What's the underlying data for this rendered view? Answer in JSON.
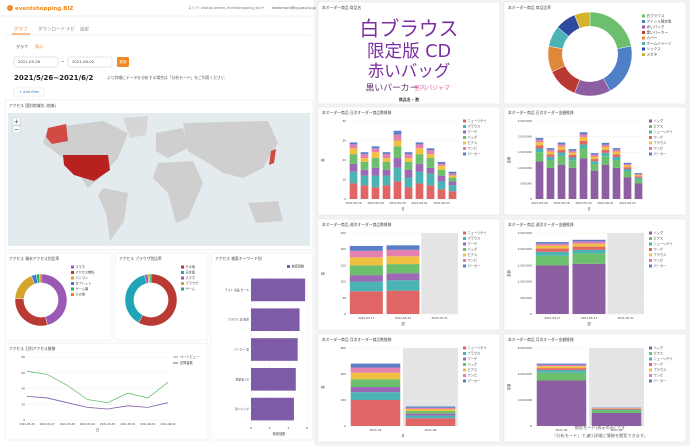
{
  "header": {
    "logo": "eventshopping.BIZ",
    "store": "ストア: eastay-stems_eventshopping_biz ▾",
    "user": "kashimura@cg-pay.co.jp"
  },
  "tabs": [
    "グラフ",
    "ダウンロード",
    "ナビ",
    "設定"
  ],
  "subtabs": [
    "グラフ",
    "表示"
  ],
  "date_from": "2021-05-26",
  "date_sep": "~",
  "date_to": "2021-06-02",
  "update_button": "更新",
  "period": "2021/5/26~2021/6/2",
  "notice": "より詳細にデータを分析する場合は「分析モード」をご利用ください",
  "add_filter": "+ Add filter",
  "footer": {
    "line1": "閲覧モード(表示のみ) です",
    "line2": "「分析モード」でより詳細に情報を閲覧できます。"
  },
  "chart_data": [
    {
      "type": "map",
      "title": "アクセス 国別地域別 (地域)"
    },
    {
      "type": "donut",
      "title": "アクセス 端末アクセス別比率",
      "categories": [
        "スマホ",
        "アクセス無料",
        "パソコン",
        "タブレット",
        "ゲーム機",
        "その他"
      ],
      "values": [
        46,
        30,
        18,
        3,
        2,
        1
      ],
      "colors": [
        "#9b59b6",
        "#b83a32",
        "#d4a52a",
        "#3a7bd5",
        "#27ae60",
        "#e67e22"
      ]
    },
    {
      "type": "donut",
      "title": "アクセス ブラウザ別比率",
      "categories": [
        "その他",
        "日本語",
        "スマホ",
        "ブラウザ",
        "ゲーム"
      ],
      "values": [
        58,
        38,
        2,
        1,
        1
      ],
      "colors": [
        "#b83a32",
        "#1fa5b5",
        "#9b59b6",
        "#d4a52a",
        "#27ae60"
      ]
    },
    {
      "type": "hbar",
      "title": "アクセス 検索キーワード別",
      "categories": [
        "テスト 商品 セール",
        "ブラウス 白 限定",
        "パーカー 黒",
        "限定版 CD",
        "赤いバッグ"
      ],
      "series": [
        {
          "name": "検索回数",
          "color": "#7d5ba6",
          "values": [
            5.8,
            5.2,
            5.0,
            4.8,
            4.6
          ]
        }
      ],
      "xlim": [
        0,
        6
      ],
      "xticks": [
        0,
        2,
        4,
        6
      ],
      "xlabel": "検索回数"
    },
    {
      "type": "line",
      "title": "アクセス 日別アクセス推移",
      "categories": [
        "2021-05-26",
        "2021-05-27",
        "2021-05-28",
        "2021-05-29",
        "2021-05-30",
        "2021-05-31",
        "2021-06-01",
        "2021-06-02"
      ],
      "series": [
        {
          "name": "ページビュー",
          "color": "#6cc070",
          "values": [
            62,
            58,
            44,
            26,
            22,
            34,
            28,
            48
          ]
        },
        {
          "name": "訪問者数",
          "color": "#7d5ba6",
          "values": [
            30,
            28,
            22,
            16,
            14,
            18,
            16,
            22
          ]
        }
      ],
      "ylim": [
        0,
        80
      ],
      "yticks": [
        0,
        20,
        40,
        60,
        80
      ],
      "xlabel": "日"
    },
    {
      "type": "wordcloud",
      "title": "本オーダー商品 商品名",
      "words": [
        "白ブラウス",
        "限定版 CD",
        "赤いバッグ",
        "黒いパーカー",
        "室内パジャマ"
      ],
      "values": [
        36,
        32,
        30,
        16,
        11
      ],
      "colors": [
        "#7b2fa0",
        "#7b2fa0",
        "#7b2fa0",
        "#5a2d6e",
        "#e46fb0"
      ],
      "caption": "商品名 - 数"
    },
    {
      "type": "donut",
      "title": "本オーダー商品 商品比率",
      "categories": [
        "白ブラウス",
        "アイシル限定版",
        "赤いバッグ",
        "黒いパーカー",
        "カバー",
        "ホームジャージ",
        "ソックス",
        "メガネ"
      ],
      "values": [
        22,
        20,
        14,
        12,
        10,
        8,
        8,
        6
      ],
      "colors": [
        "#6cbf6c",
        "#4f7fc7",
        "#8e5ea2",
        "#b83a32",
        "#e0883a",
        "#4bb3b3",
        "#2e4a9e",
        "#d4b42a"
      ]
    },
    {
      "type": "stacked",
      "title": "本オーダー商品 日次オーダー商品数推移",
      "categories": [
        "2021-05-26",
        null,
        "2021-05-28",
        null,
        "2021-05-30",
        null,
        "2021-06-01",
        null,
        "2021-06-03",
        null
      ],
      "series": [
        {
          "name": "ニューリゲイ",
          "color": "#e06666",
          "values": [
            8,
            7,
            6,
            7,
            9,
            6,
            8,
            7,
            5,
            4
          ]
        },
        {
          "name": "ブラウス",
          "color": "#4bb3b3",
          "values": [
            6,
            5,
            6,
            5,
            7,
            5,
            6,
            6,
            4,
            3
          ]
        },
        {
          "name": "ワーゲ",
          "color": "#9c6ab5",
          "values": [
            4,
            3,
            4,
            3,
            5,
            4,
            4,
            3,
            3,
            2
          ]
        },
        {
          "name": "バッグ",
          "color": "#6cbf6c",
          "values": [
            5,
            4,
            5,
            4,
            6,
            4,
            5,
            5,
            3,
            2
          ]
        },
        {
          "name": "ピアス",
          "color": "#f0c040",
          "values": [
            3,
            2,
            3,
            2,
            3,
            2,
            3,
            2,
            2,
            1
          ]
        },
        {
          "name": "ワンピ",
          "color": "#e57fb0",
          "values": [
            2,
            2,
            2,
            2,
            3,
            2,
            2,
            2,
            1,
            1
          ]
        },
        {
          "name": "パーカー",
          "color": "#5b7fc7",
          "values": [
            1,
            1,
            1,
            1,
            2,
            1,
            1,
            1,
            1,
            1
          ]
        }
      ],
      "ylim": [
        0,
        40
      ],
      "yticks": [
        0,
        10,
        20,
        30,
        40
      ],
      "xlabel": "日",
      "ylabel": "数"
    },
    {
      "type": "stacked",
      "title": "本オーダー商品 日次オーダー金額推移",
      "categories": [
        "2021-05-26",
        null,
        "2021-05-28",
        null,
        "2021-05-30",
        null,
        "2021-06-01",
        null,
        "2021-06-03",
        null
      ],
      "series": [
        {
          "name": "バッグ",
          "color": "#8e5ea2",
          "values": [
            1200000,
            1000000,
            1100000,
            1000000,
            1300000,
            900000,
            1100000,
            1000000,
            700000,
            500000
          ]
        },
        {
          "name": "ピアス",
          "color": "#6cbf6c",
          "values": [
            300000,
            250000,
            280000,
            240000,
            320000,
            220000,
            270000,
            250000,
            180000,
            120000
          ]
        },
        {
          "name": "ニューリゲイ",
          "color": "#4bb3b3",
          "values": [
            120000,
            100000,
            110000,
            90000,
            130000,
            90000,
            110000,
            100000,
            80000,
            60000
          ]
        },
        {
          "name": "ワーゲ",
          "color": "#e06666",
          "values": [
            100000,
            80000,
            90000,
            80000,
            110000,
            70000,
            90000,
            80000,
            60000,
            50000
          ]
        },
        {
          "name": "ブラウス",
          "color": "#f0c040",
          "values": [
            100000,
            90000,
            100000,
            80000,
            120000,
            80000,
            100000,
            90000,
            60000,
            40000
          ]
        },
        {
          "name": "ワンピ",
          "color": "#e57fb0",
          "values": [
            80000,
            60000,
            70000,
            60000,
            90000,
            60000,
            70000,
            60000,
            40000,
            30000
          ]
        },
        {
          "name": "パーカー",
          "color": "#5b7fc7",
          "values": [
            60000,
            50000,
            60000,
            50000,
            70000,
            50000,
            60000,
            50000,
            40000,
            30000
          ]
        }
      ],
      "ylim": [
        0,
        2500000
      ],
      "yticks": [
        0,
        {
          "value": 500000,
          "label": "500,000"
        },
        {
          "value": 1000000,
          "label": "1,000,000"
        },
        {
          "value": 1500000,
          "label": "1,500,000"
        },
        {
          "value": 2000000,
          "label": "2,000,000"
        },
        {
          "value": 2500000,
          "label": "2,500,000"
        }
      ],
      "xlabel": "日",
      "ylabel": "金額"
    },
    {
      "type": "stacked",
      "title": "本オーダー商品 週次オーダー商品数推移",
      "categories": [
        "2021-05-17",
        "2021-05-24",
        "2021-05-31"
      ],
      "series": [
        {
          "name": "ニューリゲイ",
          "color": "#e06666",
          "values": [
            70,
            72,
            null
          ]
        },
        {
          "name": "ブラウス",
          "color": "#4bb3b3",
          "values": [
            30,
            32,
            null
          ]
        },
        {
          "name": "ワーゲ",
          "color": "#9c6ab5",
          "values": [
            20,
            22,
            null
          ]
        },
        {
          "name": "バッグ",
          "color": "#6cbf6c",
          "values": [
            30,
            28,
            null
          ]
        },
        {
          "name": "ピアス",
          "color": "#f0c040",
          "values": [
            25,
            24,
            null
          ]
        },
        {
          "name": "ワンピ",
          "color": "#e57fb0",
          "values": [
            20,
            20,
            null
          ]
        },
        {
          "name": "パーカー",
          "color": "#5b7fc7",
          "values": [
            15,
            14,
            null
          ]
        }
      ],
      "ylim": [
        0,
        250
      ],
      "yticks": [
        0,
        50,
        100,
        150,
        200,
        250
      ],
      "xlabel": "週",
      "ylabel": "数"
    },
    {
      "type": "stacked",
      "title": "本オーダー商品 週次オーダー金額推移",
      "categories": [
        "2021-05-17",
        "2021-05-24",
        "2021-05-31"
      ],
      "series": [
        {
          "name": "バッグ",
          "color": "#8e5ea2",
          "values": [
            1500000,
            1550000,
            null
          ]
        },
        {
          "name": "ピアス",
          "color": "#6cbf6c",
          "values": [
            300000,
            320000,
            null
          ]
        },
        {
          "name": "ニューリゲイ",
          "color": "#4bb3b3",
          "values": [
            120000,
            110000,
            null
          ]
        },
        {
          "name": "ワーゲ",
          "color": "#e06666",
          "values": [
            100000,
            100000,
            null
          ]
        },
        {
          "name": "ブラウス",
          "color": "#f0c040",
          "values": [
            90000,
            90000,
            null
          ]
        },
        {
          "name": "ワンピ",
          "color": "#e57fb0",
          "values": [
            60000,
            70000,
            null
          ]
        },
        {
          "name": "パーカー",
          "color": "#5b7fc7",
          "values": [
            50000,
            50000,
            null
          ]
        }
      ],
      "ylim": [
        0,
        2500000
      ],
      "yticks": [
        0,
        {
          "value": 500000,
          "label": "500,000"
        },
        {
          "value": 1000000,
          "label": "1,000,000"
        },
        {
          "value": 1500000,
          "label": "1,500,000"
        },
        {
          "value": 2000000,
          "label": "2,000,000"
        },
        {
          "value": 2500000,
          "label": "2,500,000"
        }
      ],
      "xlabel": "週",
      "ylabel": "金額"
    },
    {
      "type": "stacked",
      "title": "本オーダー商品 月次オーダー商品数推移",
      "categories": [
        "2021-05",
        "2021-06"
      ],
      "series": [
        {
          "name": "ニューリゲイ",
          "color": "#e06666",
          "values": [
            200,
            60
          ]
        },
        {
          "name": "ブラウス",
          "color": "#4bb3b3",
          "values": [
            60,
            20
          ]
        },
        {
          "name": "ワーゲ",
          "color": "#9c6ab5",
          "values": [
            40,
            15
          ]
        },
        {
          "name": "バッグ",
          "color": "#6cbf6c",
          "values": [
            60,
            20
          ]
        },
        {
          "name": "ピアス",
          "color": "#f0c040",
          "values": [
            50,
            15
          ]
        },
        {
          "name": "ワンピ",
          "color": "#e57fb0",
          "values": [
            40,
            10
          ]
        },
        {
          "name": "パーカー",
          "color": "#5b7fc7",
          "values": [
            30,
            10
          ]
        }
      ],
      "ylim": [
        0,
        600
      ],
      "yticks": [
        0,
        200,
        400,
        600
      ],
      "xlabel": "月",
      "ylabel": "数"
    },
    {
      "type": "stacked",
      "title": "本オーダー商品 月次オーダー金額推移",
      "categories": [
        "2021-05",
        "2021-06"
      ],
      "series": [
        {
          "name": "バッグ",
          "color": "#8e5ea2",
          "values": [
            3500000,
            1000000
          ]
        },
        {
          "name": "ピアス",
          "color": "#6cbf6c",
          "values": [
            600000,
            200000
          ]
        },
        {
          "name": "ニューリゲイ",
          "color": "#4bb3b3",
          "values": [
            200000,
            60000
          ]
        },
        {
          "name": "ワーゲ",
          "color": "#e06666",
          "values": [
            150000,
            50000
          ]
        },
        {
          "name": "ブラウス",
          "color": "#f0c040",
          "values": [
            150000,
            40000
          ]
        },
        {
          "name": "ワンピ",
          "color": "#e57fb0",
          "values": [
            100000,
            30000
          ]
        },
        {
          "name": "パーカー",
          "color": "#5b7fc7",
          "values": [
            100000,
            30000
          ]
        }
      ],
      "ylim": [
        0,
        6000000
      ],
      "yticks": [
        0,
        {
          "value": 2000000,
          "label": "2,000,000"
        },
        {
          "value": 4000000,
          "label": "4,000,000"
        },
        {
          "value": 6000000,
          "label": "6,000,000"
        }
      ],
      "xlabel": "月",
      "ylabel": "金額"
    }
  ]
}
